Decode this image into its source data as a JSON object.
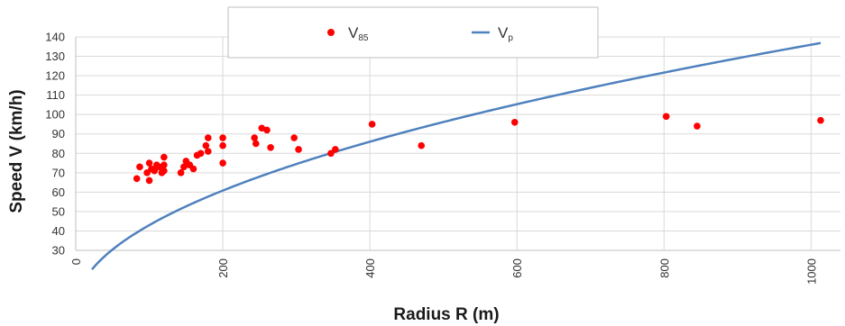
{
  "chart_data": {
    "type": "scatter",
    "xlabel": "Radius R (m)",
    "ylabel": "Speed  V (km/h)",
    "xlim": [
      0,
      1040
    ],
    "ylim": [
      30,
      140
    ],
    "x_ticks": [
      0,
      200,
      400,
      600,
      800,
      1000
    ],
    "y_ticks": [
      30,
      40,
      50,
      60,
      70,
      80,
      90,
      100,
      110,
      120,
      130,
      140
    ],
    "grid": true,
    "legend_position": "top",
    "colors": {
      "scatter": "#ff0000",
      "line": "#4f81bd",
      "grid": "#d9d9d9"
    },
    "series": [
      {
        "name_main": "V",
        "name_sub": "85",
        "kind": "scatter",
        "points": [
          [
            83,
            67
          ],
          [
            87,
            73
          ],
          [
            97,
            70
          ],
          [
            100,
            66
          ],
          [
            100,
            75
          ],
          [
            103,
            72
          ],
          [
            107,
            71
          ],
          [
            110,
            74
          ],
          [
            113,
            73
          ],
          [
            117,
            70
          ],
          [
            120,
            78
          ],
          [
            120,
            74
          ],
          [
            120,
            71
          ],
          [
            143,
            70
          ],
          [
            147,
            73
          ],
          [
            150,
            76
          ],
          [
            155,
            74
          ],
          [
            160,
            72
          ],
          [
            165,
            79
          ],
          [
            170,
            80
          ],
          [
            177,
            84
          ],
          [
            180,
            88
          ],
          [
            180,
            81
          ],
          [
            200,
            88
          ],
          [
            200,
            84
          ],
          [
            200,
            75
          ],
          [
            243,
            88
          ],
          [
            245,
            85
          ],
          [
            253,
            93
          ],
          [
            260,
            92
          ],
          [
            265,
            83
          ],
          [
            297,
            88
          ],
          [
            303,
            82
          ],
          [
            347,
            80
          ],
          [
            353,
            82
          ],
          [
            403,
            95
          ],
          [
            470,
            84
          ],
          [
            597,
            96
          ],
          [
            803,
            99
          ],
          [
            845,
            94
          ],
          [
            1013,
            97
          ]
        ]
      },
      {
        "name_main": "V",
        "name_sub": "p",
        "kind": "line",
        "model": {
          "coef": 4.3,
          "exponent": 0.5,
          "x_start": 22,
          "x_end": 1013
        }
      }
    ]
  }
}
